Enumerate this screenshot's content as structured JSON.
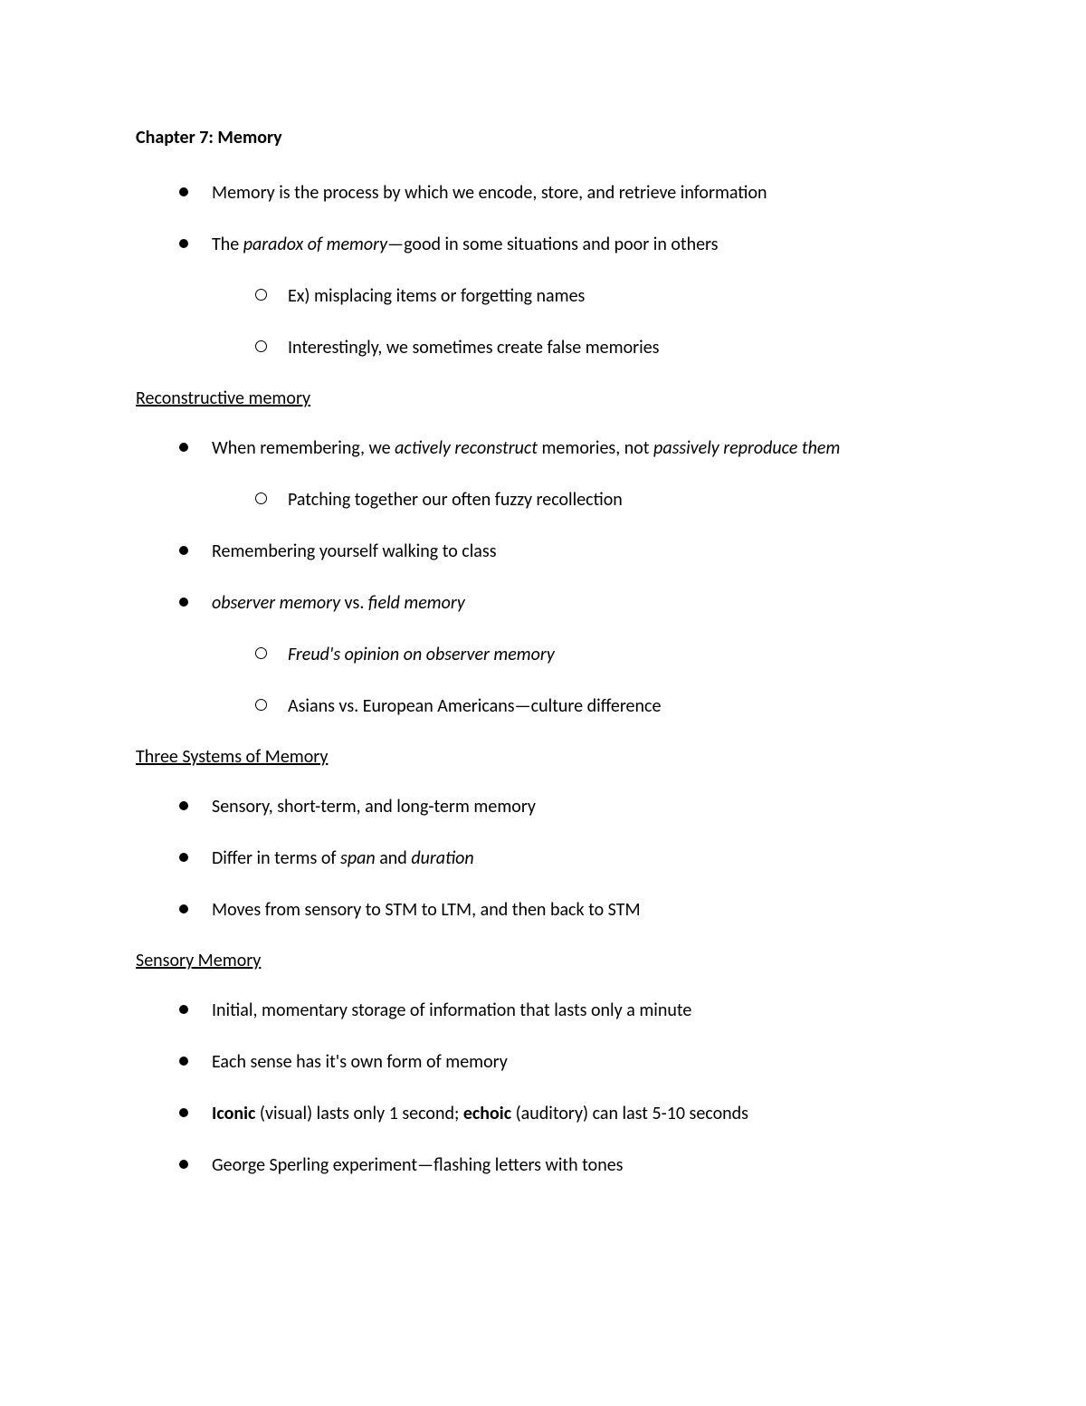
{
  "title": "Chapter 7: Memory",
  "intro": {
    "bullets": [
      {
        "text": "Memory is the process by which we encode, store, and retrieve information"
      },
      {
        "segments": [
          {
            "t": "The "
          },
          {
            "t": "paradox of memory",
            "italic": true
          },
          {
            "t": "—good in some situations and poor in others"
          }
        ],
        "sub": [
          {
            "text": "Ex) misplacing items or forgetting names"
          },
          {
            "text": "Interestingly, we sometimes create false memories"
          }
        ]
      }
    ]
  },
  "sections": [
    {
      "heading": "Reconstructive memory",
      "bullets": [
        {
          "segments": [
            {
              "t": "When remembering, we "
            },
            {
              "t": "actively reconstruct",
              "italic": true
            },
            {
              "t": " memories, not "
            },
            {
              "t": "passively reproduce them",
              "italic": true
            }
          ],
          "sub": [
            {
              "text": "Patching together our often fuzzy recollection"
            }
          ]
        },
        {
          "text": "Remembering yourself walking to class"
        },
        {
          "segments": [
            {
              "t": "observer memory",
              "italic": true
            },
            {
              "t": " vs. "
            },
            {
              "t": "field memory",
              "italic": true
            }
          ],
          "sub": [
            {
              "segments": [
                {
                  "t": "Freud's opinion on observer memory",
                  "italic": true
                }
              ]
            },
            {
              "text": "Asians vs. European Americans—culture difference"
            }
          ]
        }
      ]
    },
    {
      "heading": "Three Systems of Memory",
      "bullets": [
        {
          "text": "Sensory, short-term, and long-term memory"
        },
        {
          "segments": [
            {
              "t": "Differ in terms of "
            },
            {
              "t": "span",
              "italic": true
            },
            {
              "t": " and "
            },
            {
              "t": "duration",
              "italic": true
            }
          ]
        },
        {
          "text": "Moves from sensory to STM to LTM, and then back to STM"
        }
      ]
    },
    {
      "heading": "Sensory Memory",
      "bullets": [
        {
          "text": "Initial, momentary storage of information that lasts only a minute"
        },
        {
          "text": "Each sense has it's own form of memory"
        },
        {
          "segments": [
            {
              "t": "Iconic",
              "bold": true
            },
            {
              "t": " (visual) lasts only 1 second; "
            },
            {
              "t": "echoic",
              "bold": true
            },
            {
              "t": " (auditory) can last 5-10 seconds"
            }
          ]
        },
        {
          "text": "George Sperling experiment—flashing letters with tones"
        }
      ]
    }
  ]
}
